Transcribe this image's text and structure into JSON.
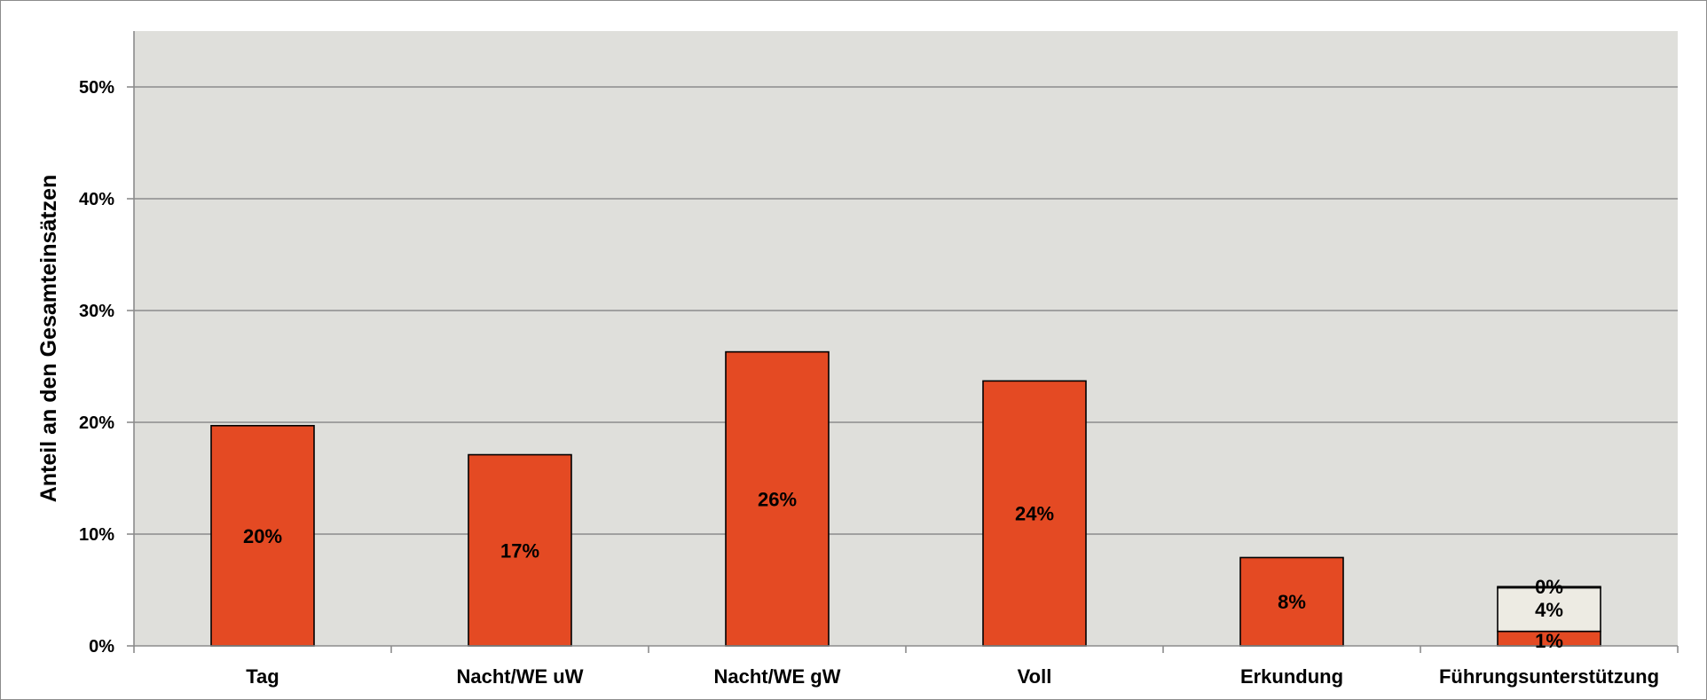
{
  "chart_data": {
    "type": "bar",
    "stacked": true,
    "categories": [
      "Tag",
      "Nacht/WE uW",
      "Nacht/WE gW",
      "Voll",
      "Erkundung",
      "Führungsunterstützung"
    ],
    "series": [
      {
        "values": [
          19.7,
          17.1,
          26.3,
          23.7,
          7.9,
          1.3
        ],
        "labels": [
          "20%",
          "17%",
          "26%",
          "24%",
          "8%",
          "1%"
        ],
        "color": "#e44a23"
      },
      {
        "values": [
          0,
          0,
          0,
          0,
          0,
          3.9
        ],
        "labels": [
          "",
          "",
          "",
          "",
          "",
          "4%"
        ],
        "color": "#edebe3"
      },
      {
        "values": [
          0,
          0,
          0,
          0,
          0,
          0.1
        ],
        "labels": [
          "",
          "",
          "",
          "",
          "",
          "0%"
        ],
        "color": "#edebe3"
      }
    ],
    "title": "",
    "xlabel": "",
    "ylabel": "Anteil an den Gesamteinsätzen",
    "ylim": [
      0,
      55
    ],
    "yticks": [
      0,
      10,
      20,
      30,
      40,
      50
    ],
    "ytick_labels": [
      "0%",
      "10%",
      "20%",
      "30%",
      "40%",
      "50%"
    ],
    "grid": true,
    "legend": "none",
    "plot_background": "#dfdfdb",
    "gridline_color": "#8c8c8c"
  }
}
